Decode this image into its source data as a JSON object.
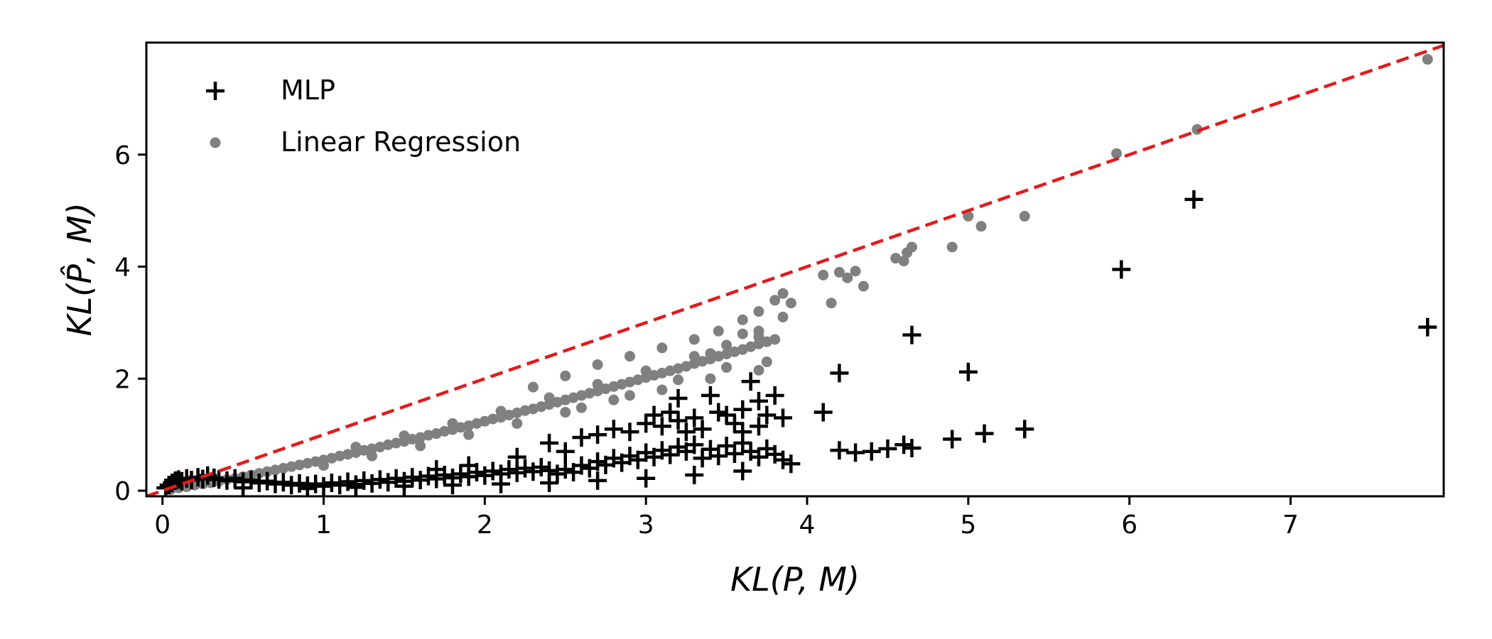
{
  "chart_data": {
    "type": "scatter",
    "title": "",
    "xlabel": "KL(P, M)",
    "ylabel": "KL(P̂, M)",
    "xlim": [
      -0.1,
      7.95
    ],
    "ylim": [
      -0.1,
      8.0
    ],
    "xticks": [
      0,
      1,
      2,
      3,
      4,
      5,
      6,
      7
    ],
    "yticks": [
      0,
      2,
      4,
      6
    ],
    "grid": false,
    "legend_position": "top-left",
    "reference_line": {
      "x": [
        -0.1,
        7.95
      ],
      "y": [
        -0.1,
        7.95
      ],
      "style": "dashed",
      "color": "#e31a1c"
    },
    "series": [
      {
        "name": "MLP",
        "marker": "plus",
        "color": "#000000",
        "points": [
          [
            0.02,
            0.05
          ],
          [
            0.04,
            0.1
          ],
          [
            0.06,
            0.14
          ],
          [
            0.08,
            0.18
          ],
          [
            0.1,
            0.2
          ],
          [
            0.12,
            0.17
          ],
          [
            0.15,
            0.22
          ],
          [
            0.18,
            0.19
          ],
          [
            0.22,
            0.24
          ],
          [
            0.25,
            0.21
          ],
          [
            0.28,
            0.27
          ],
          [
            0.32,
            0.23
          ],
          [
            0.35,
            0.2
          ],
          [
            0.4,
            0.18
          ],
          [
            0.45,
            0.22
          ],
          [
            0.5,
            0.16
          ],
          [
            0.55,
            0.19
          ],
          [
            0.6,
            0.14
          ],
          [
            0.65,
            0.17
          ],
          [
            0.7,
            0.12
          ],
          [
            0.75,
            0.15
          ],
          [
            0.8,
            0.1
          ],
          [
            0.85,
            0.13
          ],
          [
            0.9,
            0.09
          ],
          [
            0.95,
            0.12
          ],
          [
            1.0,
            0.08
          ],
          [
            1.05,
            0.14
          ],
          [
            1.1,
            0.1
          ],
          [
            1.15,
            0.16
          ],
          [
            1.2,
            0.11
          ],
          [
            1.25,
            0.18
          ],
          [
            1.3,
            0.13
          ],
          [
            1.35,
            0.2
          ],
          [
            1.4,
            0.15
          ],
          [
            1.45,
            0.22
          ],
          [
            1.5,
            0.17
          ],
          [
            1.55,
            0.24
          ],
          [
            1.6,
            0.19
          ],
          [
            1.65,
            0.26
          ],
          [
            1.7,
            0.21
          ],
          [
            1.75,
            0.28
          ],
          [
            1.8,
            0.23
          ],
          [
            1.85,
            0.3
          ],
          [
            1.9,
            0.25
          ],
          [
            1.95,
            0.33
          ],
          [
            2.0,
            0.27
          ],
          [
            2.05,
            0.35
          ],
          [
            2.1,
            0.3
          ],
          [
            2.15,
            0.38
          ],
          [
            2.2,
            0.32
          ],
          [
            2.25,
            0.4
          ],
          [
            2.3,
            0.34
          ],
          [
            2.35,
            0.42
          ],
          [
            2.4,
            0.36
          ],
          [
            2.45,
            0.3
          ],
          [
            2.5,
            0.38
          ],
          [
            2.55,
            0.33
          ],
          [
            2.6,
            0.45
          ],
          [
            2.65,
            0.4
          ],
          [
            2.7,
            0.52
          ],
          [
            2.75,
            0.46
          ],
          [
            2.8,
            0.58
          ],
          [
            2.85,
            0.5
          ],
          [
            2.9,
            0.62
          ],
          [
            2.95,
            0.55
          ],
          [
            3.0,
            0.68
          ],
          [
            3.05,
            0.6
          ],
          [
            3.1,
            0.72
          ],
          [
            3.15,
            0.64
          ],
          [
            3.2,
            0.78
          ],
          [
            3.25,
            0.7
          ],
          [
            3.3,
            0.82
          ],
          [
            3.35,
            0.58
          ],
          [
            3.4,
            0.74
          ],
          [
            3.45,
            0.62
          ],
          [
            3.5,
            0.8
          ],
          [
            3.55,
            0.66
          ],
          [
            3.6,
            0.85
          ],
          [
            3.65,
            0.7
          ],
          [
            3.7,
            0.6
          ],
          [
            3.75,
            0.75
          ],
          [
            3.8,
            0.65
          ],
          [
            3.85,
            0.55
          ],
          [
            3.9,
            0.48
          ],
          [
            2.4,
            0.85
          ],
          [
            2.6,
            0.95
          ],
          [
            2.7,
            1.0
          ],
          [
            2.8,
            1.1
          ],
          [
            2.9,
            1.05
          ],
          [
            3.0,
            1.2
          ],
          [
            3.05,
            1.35
          ],
          [
            3.1,
            1.15
          ],
          [
            3.15,
            1.4
          ],
          [
            3.2,
            1.25
          ],
          [
            3.25,
            1.05
          ],
          [
            3.3,
            1.3
          ],
          [
            3.35,
            1.1
          ],
          [
            3.2,
            1.65
          ],
          [
            3.4,
            1.7
          ],
          [
            3.45,
            1.4
          ],
          [
            3.5,
            1.35
          ],
          [
            3.55,
            1.2
          ],
          [
            3.6,
            1.45
          ],
          [
            3.65,
            1.95
          ],
          [
            3.7,
            1.6
          ],
          [
            3.75,
            1.35
          ],
          [
            3.8,
            1.7
          ],
          [
            3.85,
            1.3
          ],
          [
            3.6,
            1.05
          ],
          [
            3.7,
            1.15
          ],
          [
            0.5,
            0.05
          ],
          [
            0.9,
            0.04
          ],
          [
            1.2,
            0.06
          ],
          [
            1.5,
            0.08
          ],
          [
            1.8,
            0.1
          ],
          [
            2.1,
            0.12
          ],
          [
            2.4,
            0.14
          ],
          [
            2.7,
            0.18
          ],
          [
            3.0,
            0.22
          ],
          [
            3.3,
            0.28
          ],
          [
            3.6,
            0.35
          ],
          [
            2.2,
            0.6
          ],
          [
            2.5,
            0.7
          ],
          [
            1.9,
            0.45
          ],
          [
            1.7,
            0.38
          ],
          [
            4.1,
            1.4
          ],
          [
            4.2,
            2.1
          ],
          [
            4.2,
            0.72
          ],
          [
            4.3,
            0.68
          ],
          [
            4.4,
            0.7
          ],
          [
            4.5,
            0.75
          ],
          [
            4.6,
            0.82
          ],
          [
            4.65,
            2.78
          ],
          [
            4.65,
            0.76
          ],
          [
            4.9,
            0.92
          ],
          [
            5.0,
            2.12
          ],
          [
            5.1,
            1.02
          ],
          [
            5.35,
            1.1
          ],
          [
            5.95,
            3.95
          ],
          [
            6.4,
            5.2
          ],
          [
            7.85,
            2.92
          ]
        ]
      },
      {
        "name": "Linear Regression",
        "marker": "circle",
        "color": "#808080",
        "points": [
          [
            0.05,
            0.02
          ],
          [
            0.1,
            0.05
          ],
          [
            0.15,
            0.07
          ],
          [
            0.2,
            0.1
          ],
          [
            0.25,
            0.12
          ],
          [
            0.3,
            0.14
          ],
          [
            0.35,
            0.17
          ],
          [
            0.4,
            0.2
          ],
          [
            0.45,
            0.22
          ],
          [
            0.5,
            0.25
          ],
          [
            0.55,
            0.28
          ],
          [
            0.6,
            0.31
          ],
          [
            0.65,
            0.34
          ],
          [
            0.7,
            0.37
          ],
          [
            0.75,
            0.4
          ],
          [
            0.8,
            0.43
          ],
          [
            0.85,
            0.46
          ],
          [
            0.9,
            0.49
          ],
          [
            0.95,
            0.52
          ],
          [
            1.0,
            0.55
          ],
          [
            1.05,
            0.58
          ],
          [
            1.1,
            0.62
          ],
          [
            1.15,
            0.65
          ],
          [
            1.2,
            0.68
          ],
          [
            1.25,
            0.72
          ],
          [
            1.3,
            0.75
          ],
          [
            1.35,
            0.78
          ],
          [
            1.4,
            0.82
          ],
          [
            1.45,
            0.85
          ],
          [
            1.5,
            0.88
          ],
          [
            1.55,
            0.92
          ],
          [
            1.6,
            0.95
          ],
          [
            1.65,
            0.99
          ],
          [
            1.7,
            1.02
          ],
          [
            1.75,
            1.06
          ],
          [
            1.8,
            1.09
          ],
          [
            1.85,
            1.13
          ],
          [
            1.9,
            1.16
          ],
          [
            1.95,
            1.2
          ],
          [
            2.0,
            1.24
          ],
          [
            2.05,
            1.28
          ],
          [
            2.1,
            1.31
          ],
          [
            2.15,
            1.35
          ],
          [
            2.2,
            1.39
          ],
          [
            2.25,
            1.43
          ],
          [
            2.3,
            1.46
          ],
          [
            2.35,
            1.5
          ],
          [
            2.4,
            1.54
          ],
          [
            2.45,
            1.58
          ],
          [
            2.5,
            1.62
          ],
          [
            2.55,
            1.66
          ],
          [
            2.6,
            1.7
          ],
          [
            2.65,
            1.74
          ],
          [
            2.7,
            1.78
          ],
          [
            2.75,
            1.82
          ],
          [
            2.8,
            1.86
          ],
          [
            2.85,
            1.9
          ],
          [
            2.9,
            1.94
          ],
          [
            2.95,
            1.98
          ],
          [
            3.0,
            2.02
          ],
          [
            3.05,
            2.06
          ],
          [
            3.1,
            2.1
          ],
          [
            3.15,
            2.14
          ],
          [
            3.2,
            2.18
          ],
          [
            3.25,
            2.22
          ],
          [
            3.3,
            2.27
          ],
          [
            3.35,
            2.31
          ],
          [
            3.4,
            2.35
          ],
          [
            3.45,
            2.4
          ],
          [
            3.5,
            2.44
          ],
          [
            3.55,
            2.48
          ],
          [
            3.6,
            2.52
          ],
          [
            3.65,
            2.57
          ],
          [
            3.7,
            2.62
          ],
          [
            3.75,
            2.66
          ],
          [
            3.8,
            2.7
          ],
          [
            1.2,
            0.78
          ],
          [
            1.5,
            0.98
          ],
          [
            1.8,
            1.2
          ],
          [
            2.1,
            1.42
          ],
          [
            2.4,
            1.66
          ],
          [
            2.7,
            1.9
          ],
          [
            3.0,
            2.14
          ],
          [
            3.3,
            2.4
          ],
          [
            3.5,
            2.6
          ],
          [
            3.7,
            2.85
          ],
          [
            3.85,
            3.1
          ],
          [
            3.8,
            3.4
          ],
          [
            3.85,
            3.52
          ],
          [
            3.7,
            3.2
          ],
          [
            3.6,
            3.05
          ],
          [
            3.45,
            2.85
          ],
          [
            3.3,
            2.7
          ],
          [
            3.1,
            2.55
          ],
          [
            2.9,
            2.4
          ],
          [
            2.7,
            2.25
          ],
          [
            2.5,
            2.05
          ],
          [
            2.3,
            1.85
          ],
          [
            1.0,
            0.45
          ],
          [
            1.3,
            0.62
          ],
          [
            1.6,
            0.8
          ],
          [
            1.9,
            1.0
          ],
          [
            2.2,
            1.2
          ],
          [
            2.5,
            1.4
          ],
          [
            2.8,
            1.62
          ],
          [
            3.1,
            1.8
          ],
          [
            3.4,
            2.0
          ],
          [
            3.7,
            2.15
          ],
          [
            2.6,
            1.48
          ],
          [
            2.9,
            1.7
          ],
          [
            3.2,
            1.98
          ],
          [
            3.5,
            2.2
          ],
          [
            3.75,
            2.3
          ],
          [
            3.4,
            2.45
          ],
          [
            3.6,
            2.8
          ],
          [
            3.7,
            2.75
          ],
          [
            3.9,
            3.35
          ],
          [
            4.1,
            3.85
          ],
          [
            4.2,
            3.9
          ],
          [
            4.15,
            3.35
          ],
          [
            4.25,
            3.8
          ],
          [
            4.3,
            3.92
          ],
          [
            4.35,
            3.65
          ],
          [
            4.55,
            4.15
          ],
          [
            4.6,
            4.1
          ],
          [
            4.65,
            4.35
          ],
          [
            4.62,
            4.25
          ],
          [
            4.9,
            4.35
          ],
          [
            5.0,
            4.9
          ],
          [
            5.08,
            4.72
          ],
          [
            5.35,
            4.9
          ],
          [
            5.92,
            6.02
          ],
          [
            6.42,
            6.45
          ],
          [
            7.85,
            7.7
          ]
        ]
      }
    ]
  }
}
